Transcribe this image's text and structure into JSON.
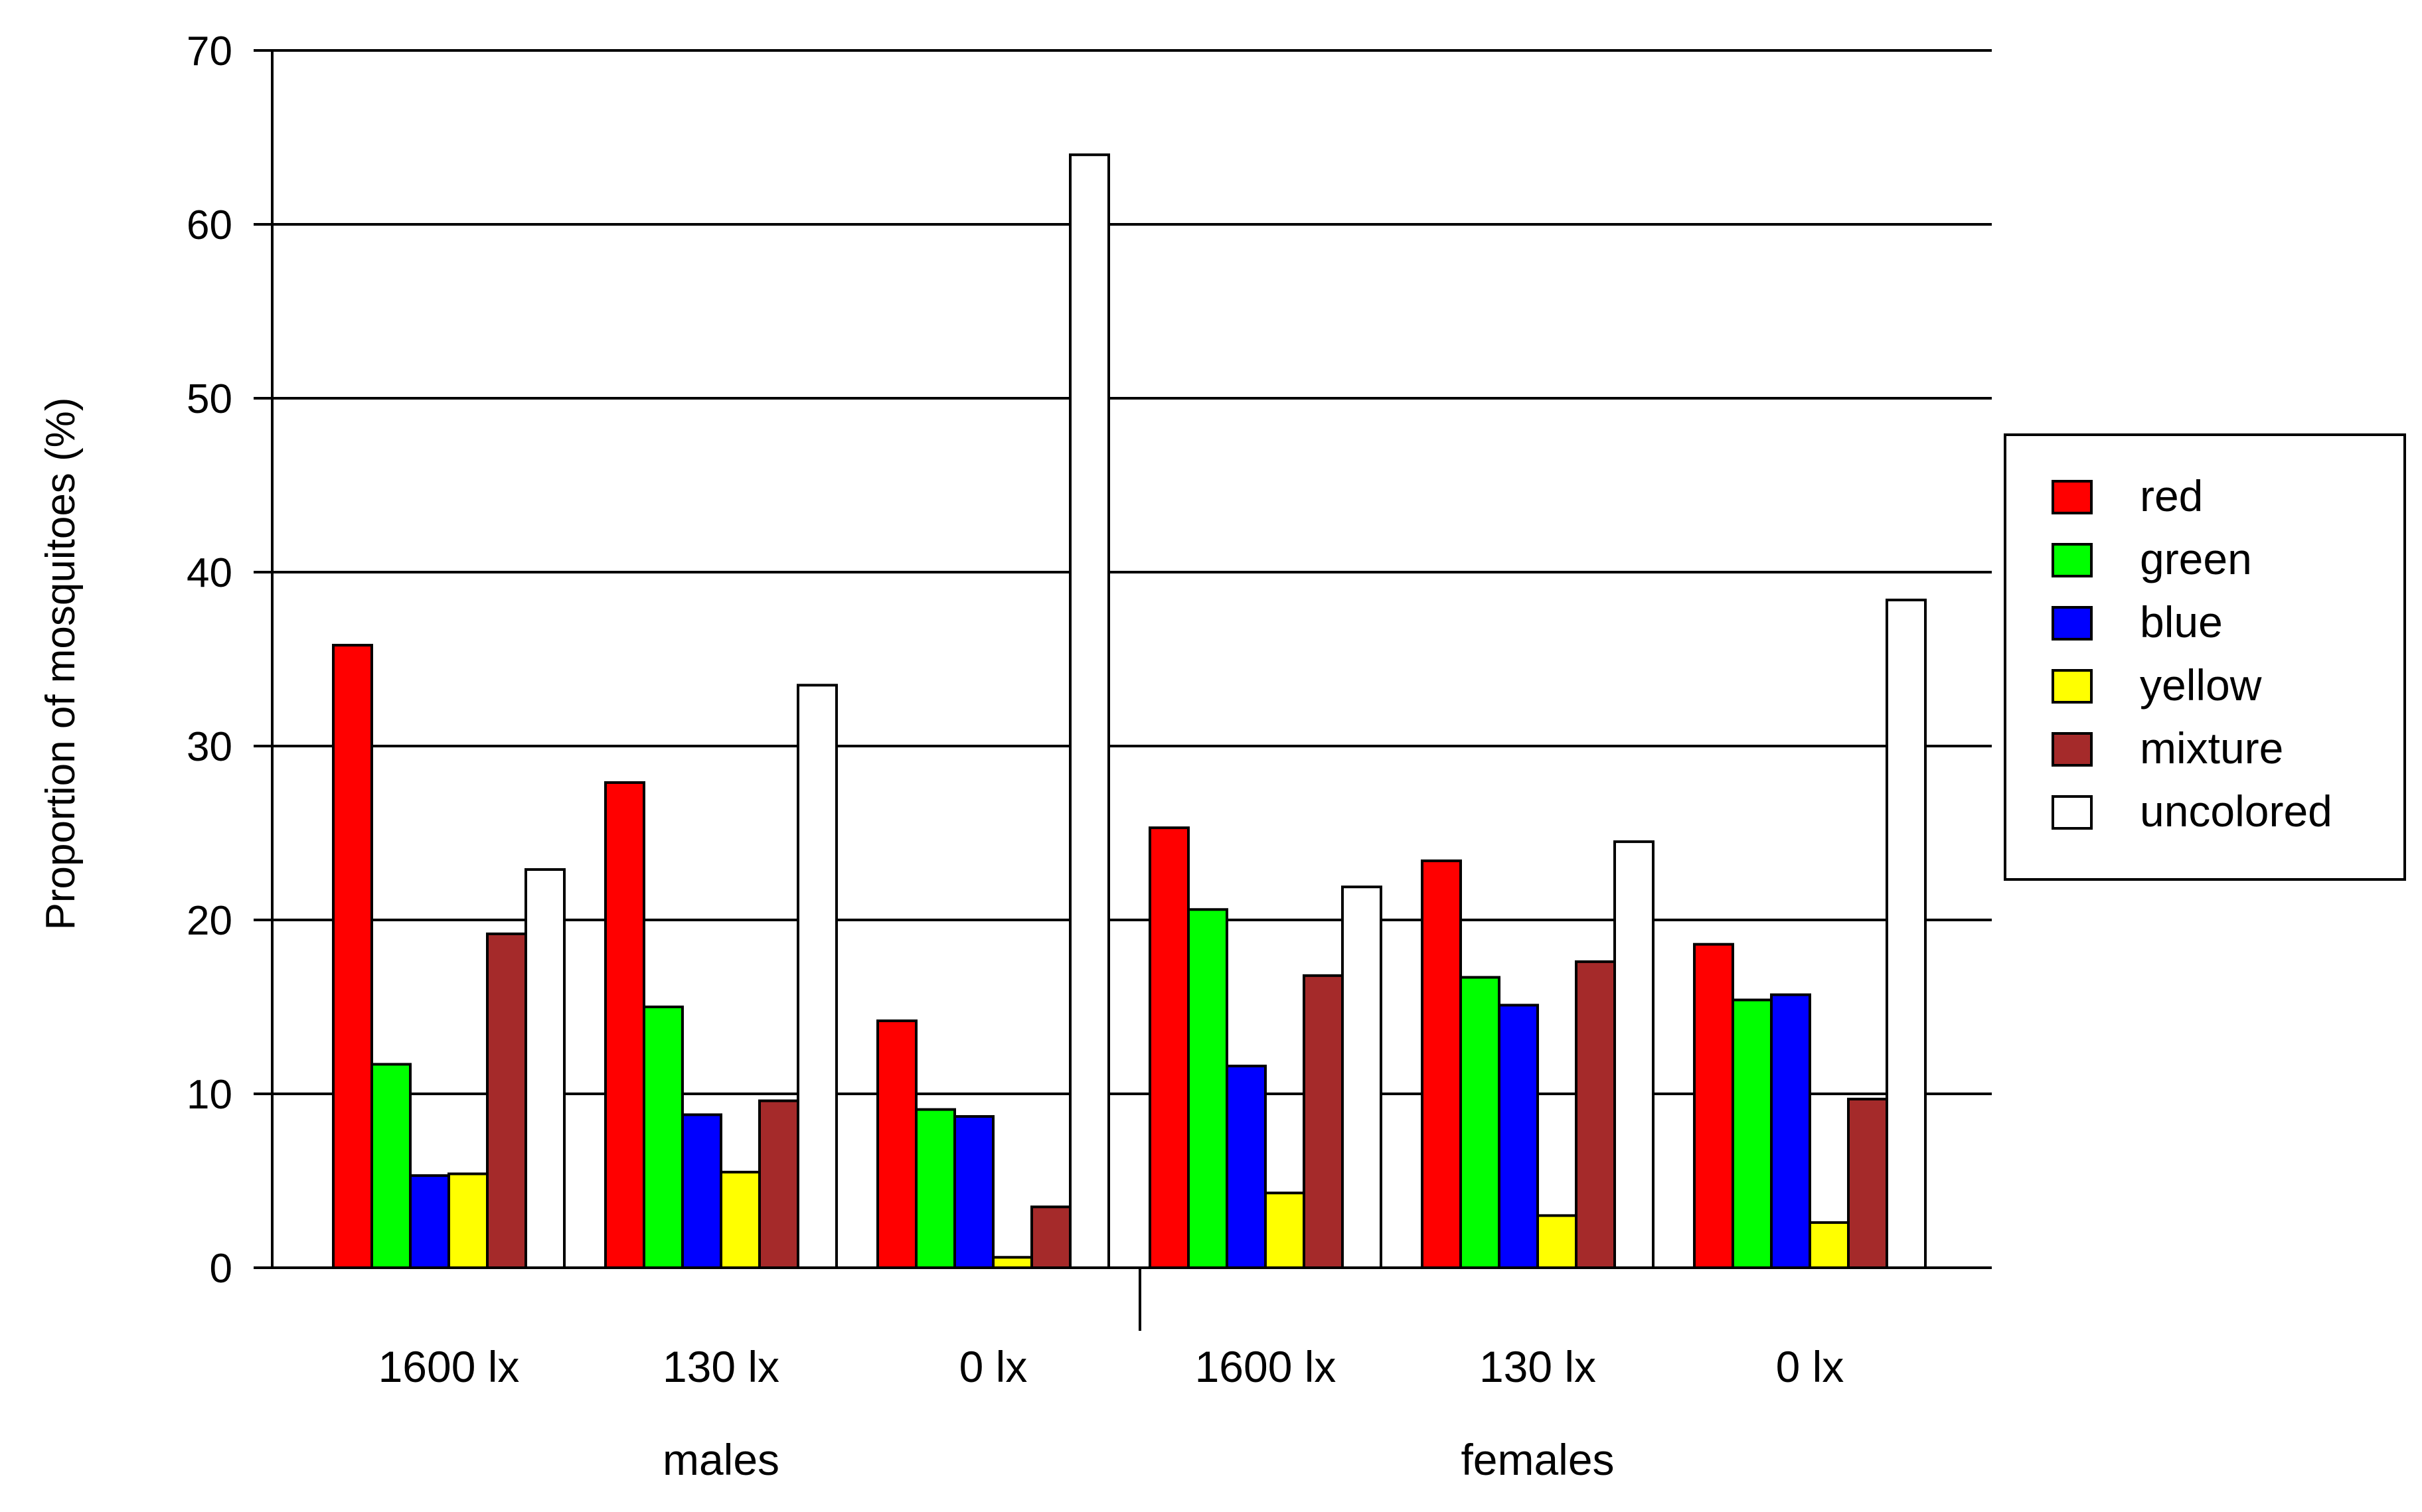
{
  "chart_data": {
    "type": "bar",
    "ylabel": "Proportion of mosquitoes (%)",
    "ylim": [
      0,
      70
    ],
    "yticks": [
      0,
      10,
      20,
      30,
      40,
      50,
      60,
      70
    ],
    "grid": "horizontal",
    "legend_position": "right",
    "groups": [
      "males",
      "females"
    ],
    "categories": [
      "1600 lx",
      "130 lx",
      "0 lx",
      "1600 lx",
      "130 lx",
      "0 lx"
    ],
    "series": [
      {
        "name": "red",
        "color": "#ff0000",
        "values": [
          35.8,
          27.9,
          14.2,
          25.3,
          23.4,
          18.6
        ]
      },
      {
        "name": "green",
        "color": "#00ff00",
        "values": [
          11.7,
          15.0,
          9.1,
          20.6,
          16.7,
          15.4
        ]
      },
      {
        "name": "blue",
        "color": "#0000ff",
        "values": [
          5.3,
          8.8,
          8.7,
          11.6,
          15.1,
          15.7
        ]
      },
      {
        "name": "yellow",
        "color": "#ffff00",
        "values": [
          5.4,
          5.5,
          0.6,
          4.3,
          3.0,
          2.6
        ]
      },
      {
        "name": "mixture",
        "color": "#a52a2a",
        "values": [
          19.2,
          9.6,
          3.5,
          16.8,
          17.6,
          9.7
        ]
      },
      {
        "name": "uncolored",
        "color": "#ffffff",
        "values": [
          22.9,
          33.5,
          64.0,
          21.9,
          24.5,
          38.4
        ]
      }
    ]
  }
}
